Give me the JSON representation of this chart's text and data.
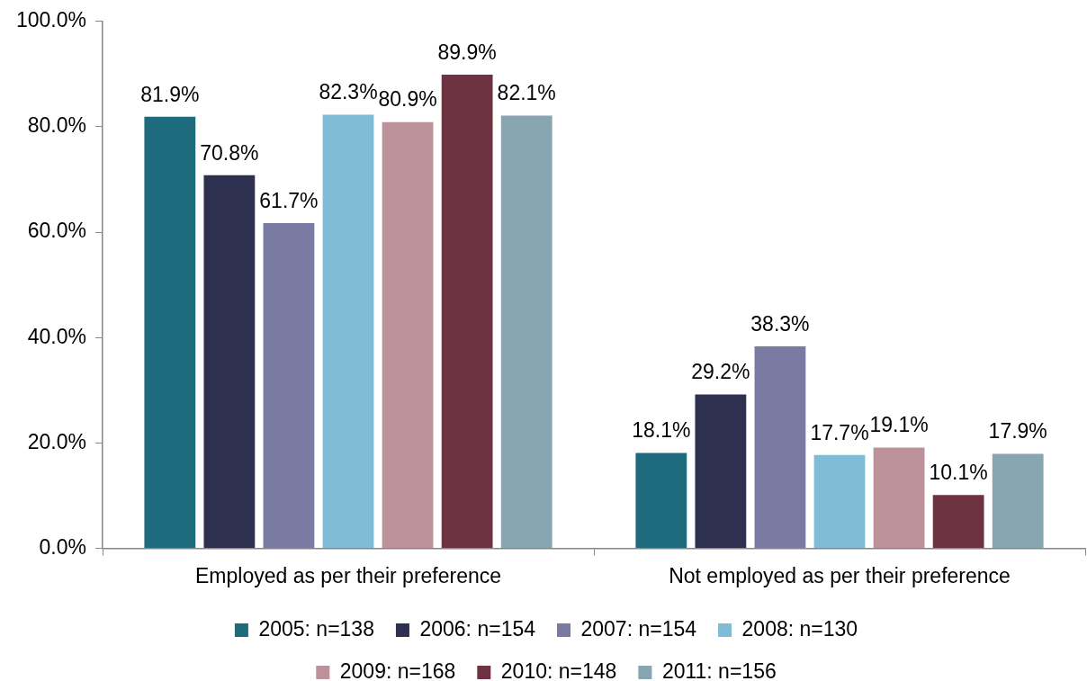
{
  "chart_data": {
    "type": "bar",
    "categories": [
      "Employed as per their preference",
      "Not employed as per their preference"
    ],
    "series": [
      {
        "name": "2005: n=138",
        "color": "#1f6b7e",
        "values": [
          81.9,
          18.1
        ],
        "value_labels": [
          "81.9%",
          "18.1%"
        ]
      },
      {
        "name": "2006: n=154",
        "color": "#2e304f",
        "values": [
          70.8,
          29.2
        ],
        "value_labels": [
          "70.8%",
          "29.2%"
        ]
      },
      {
        "name": "2007: n=154",
        "color": "#7a7ba2",
        "values": [
          61.7,
          38.3
        ],
        "value_labels": [
          "61.7%",
          "38.3%"
        ]
      },
      {
        "name": "2008: n=130",
        "color": "#7fbcd6",
        "values": [
          82.3,
          17.7
        ],
        "value_labels": [
          "82.3%",
          "17.7%"
        ]
      },
      {
        "name": "2009: n=168",
        "color": "#bd9199",
        "values": [
          80.9,
          19.1
        ],
        "value_labels": [
          "80.9%",
          "19.1%"
        ]
      },
      {
        "name": "2010: n=148",
        "color": "#6e3340",
        "values": [
          89.9,
          10.1
        ],
        "value_labels": [
          "89.9%",
          "10.1%"
        ]
      },
      {
        "name": "2011: n=156",
        "color": "#87a6b1",
        "values": [
          82.1,
          17.9
        ],
        "value_labels": [
          "82.1%",
          "17.9%"
        ]
      }
    ],
    "ylim": [
      0,
      100
    ],
    "yticks": [
      {
        "value": 0,
        "label": "0.0%"
      },
      {
        "value": 20,
        "label": "20.0%"
      },
      {
        "value": 40,
        "label": "40.0%"
      },
      {
        "value": 60,
        "label": "60.0%"
      },
      {
        "value": 80,
        "label": "80.0%"
      },
      {
        "value": 100,
        "label": "100.0%"
      }
    ],
    "legend": "bottom"
  }
}
